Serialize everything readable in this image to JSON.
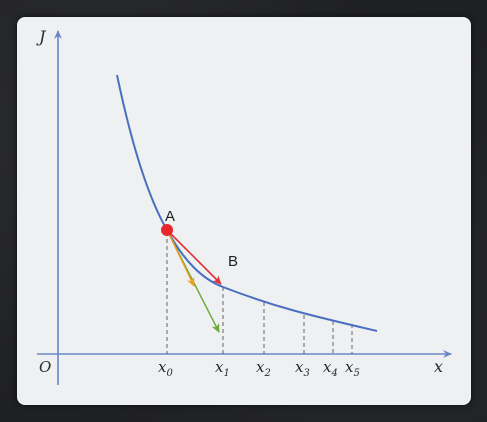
{
  "diagram": {
    "axes": {
      "y_label": "J",
      "x_label": "x",
      "origin_label": "O"
    },
    "points": {
      "a_label": "A",
      "b_label": "B"
    },
    "ticks": [
      {
        "base": "x",
        "sub": "0"
      },
      {
        "base": "x",
        "sub": "1"
      },
      {
        "base": "x",
        "sub": "2"
      },
      {
        "base": "x",
        "sub": "3"
      },
      {
        "base": "x",
        "sub": "4"
      },
      {
        "base": "x",
        "sub": "5"
      }
    ],
    "colors": {
      "curve": "#4a6fc0",
      "axis": "#6b86c8",
      "point": "#e8262b",
      "arrow_red": "#e0313a",
      "arrow_orange": "#f0a020",
      "arrow_green": "#6aaa35",
      "dashed": "#555555"
    }
  }
}
